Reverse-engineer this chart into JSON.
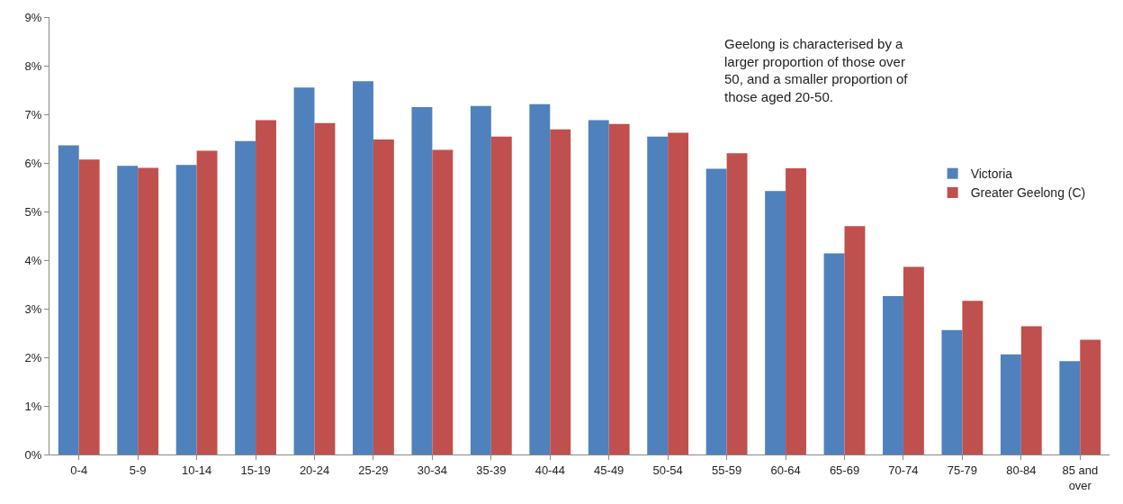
{
  "chart_data": {
    "type": "bar",
    "categories": [
      "0-4",
      "5-9",
      "10-14",
      "15-19",
      "20-24",
      "25-29",
      "30-34",
      "35-39",
      "40-44",
      "45-49",
      "50-54",
      "55-59",
      "60-64",
      "65-69",
      "70-74",
      "75-79",
      "80-84",
      "85 and over"
    ],
    "series": [
      {
        "name": "Victoria",
        "color": "#4f81bd",
        "values": [
          6.36,
          5.94,
          5.96,
          6.45,
          7.55,
          7.68,
          7.15,
          7.17,
          7.21,
          6.88,
          6.54,
          5.88,
          5.42,
          4.14,
          3.26,
          2.56,
          2.06,
          1.92
        ]
      },
      {
        "name": "Greater Geelong (C)",
        "color": "#c0504d",
        "values": [
          6.07,
          5.9,
          6.25,
          6.88,
          6.82,
          6.48,
          6.27,
          6.54,
          6.69,
          6.8,
          6.62,
          6.2,
          5.89,
          4.7,
          3.86,
          3.16,
          2.64,
          2.36
        ]
      }
    ],
    "ylim": [
      0,
      9
    ],
    "yticks": [
      {
        "value": 0,
        "label": "0%"
      },
      {
        "value": 1,
        "label": "1%"
      },
      {
        "value": 2,
        "label": "2%"
      },
      {
        "value": 3,
        "label": "3%"
      },
      {
        "value": 4,
        "label": "4%"
      },
      {
        "value": 5,
        "label": "5%"
      },
      {
        "value": 6,
        "label": "6%"
      },
      {
        "value": 7,
        "label": "7%"
      },
      {
        "value": 8,
        "label": "8%"
      },
      {
        "value": 9,
        "label": "9%"
      }
    ],
    "annotations": [
      "Geelong is characterised by a\nlarger proportion of those over\n50, and a smaller proportion of\nthose aged 20-50."
    ],
    "legend": "right"
  }
}
